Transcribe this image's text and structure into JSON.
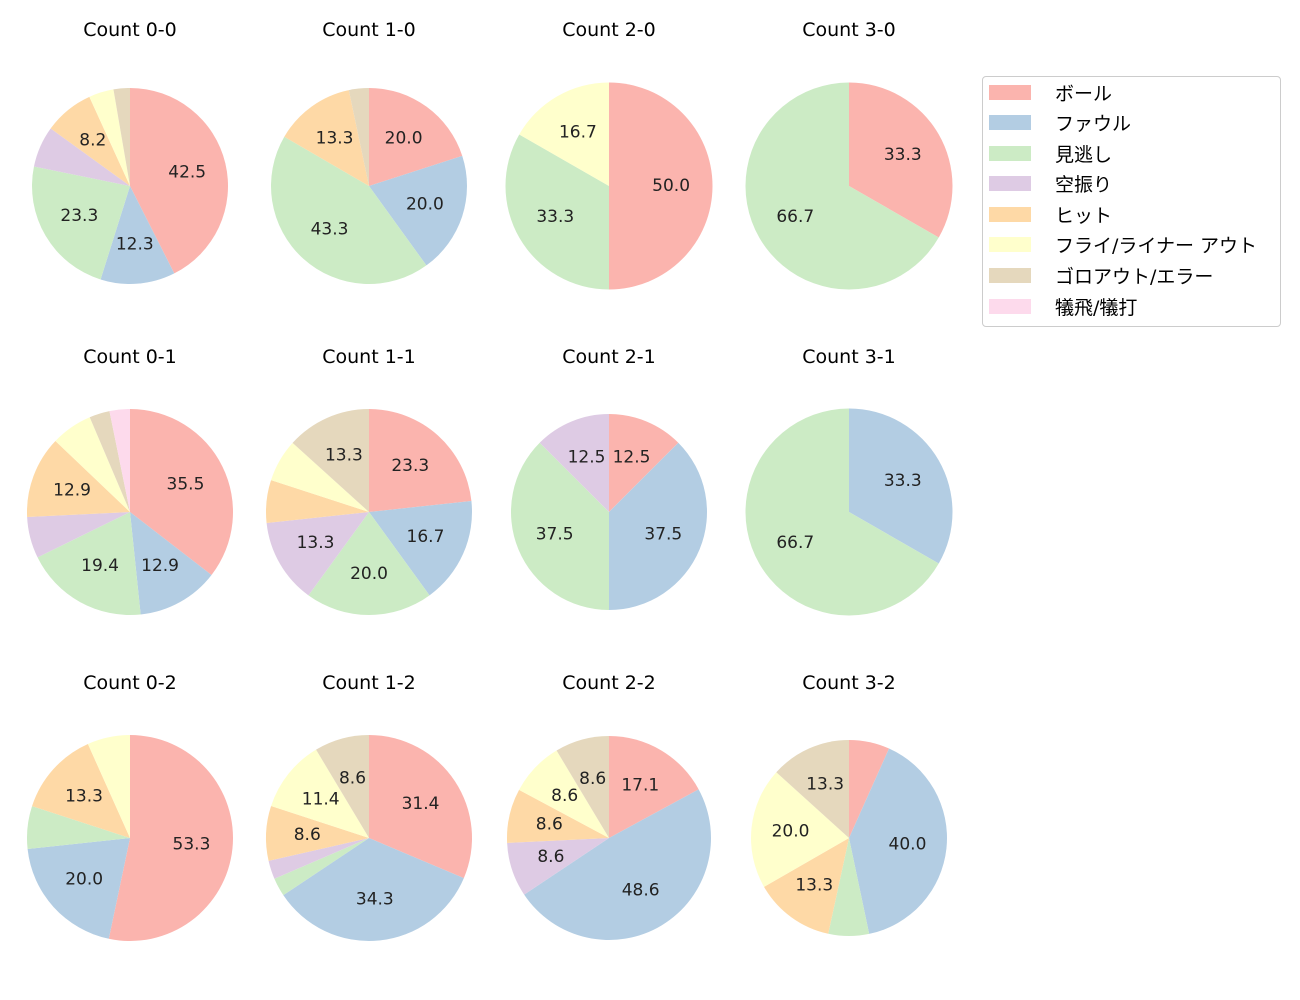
{
  "chart_data": {
    "type": "pie",
    "legend_position": "right",
    "categories": [
      "ボール",
      "ファウル",
      "見逃し",
      "空振り",
      "ヒット",
      "フライ/ライナー アウト",
      "ゴロアウト/エラー",
      "犠飛/犠打"
    ],
    "colors": [
      "#fbb4ae",
      "#b3cde3",
      "#ccebc5",
      "#decbe4",
      "#fed9a6",
      "#ffffcc",
      "#e5d8bd",
      "#fddaec"
    ],
    "start_angle": 90,
    "direction": "clockwise",
    "charts": [
      {
        "title": "Count 0-0",
        "values": [
          42.5,
          12.3,
          23.3,
          6.8,
          8.2,
          4.1,
          2.7,
          0
        ]
      },
      {
        "title": "Count 1-0",
        "values": [
          20.0,
          20.0,
          43.3,
          0,
          13.3,
          0,
          3.3,
          0
        ]
      },
      {
        "title": "Count 2-0",
        "values": [
          50.0,
          0,
          33.3,
          0,
          0,
          16.7,
          0,
          0
        ]
      },
      {
        "title": "Count 3-0",
        "values": [
          33.3,
          0,
          66.7,
          0,
          0,
          0,
          0,
          0
        ]
      },
      {
        "title": "Count 0-1",
        "values": [
          35.5,
          12.9,
          19.4,
          6.5,
          12.9,
          6.5,
          3.2,
          3.2
        ]
      },
      {
        "title": "Count 1-1",
        "values": [
          23.3,
          16.7,
          20.0,
          13.3,
          6.7,
          6.7,
          13.3,
          0
        ]
      },
      {
        "title": "Count 2-1",
        "values": [
          12.5,
          37.5,
          37.5,
          12.5,
          0,
          0,
          0,
          0
        ]
      },
      {
        "title": "Count 3-1",
        "values": [
          0,
          33.3,
          66.7,
          0,
          0,
          0,
          0,
          0
        ]
      },
      {
        "title": "Count 0-2",
        "values": [
          53.3,
          20.0,
          6.7,
          0,
          13.3,
          6.7,
          0,
          0
        ]
      },
      {
        "title": "Count 1-2",
        "values": [
          31.4,
          34.3,
          2.9,
          2.9,
          8.6,
          11.4,
          8.6,
          0
        ]
      },
      {
        "title": "Count 2-2",
        "values": [
          17.1,
          48.6,
          0,
          8.6,
          8.6,
          8.6,
          8.6,
          0
        ]
      },
      {
        "title": "Count 3-2",
        "values": [
          6.7,
          40.0,
          6.7,
          0,
          13.3,
          20.0,
          13.3,
          0
        ]
      }
    ]
  }
}
